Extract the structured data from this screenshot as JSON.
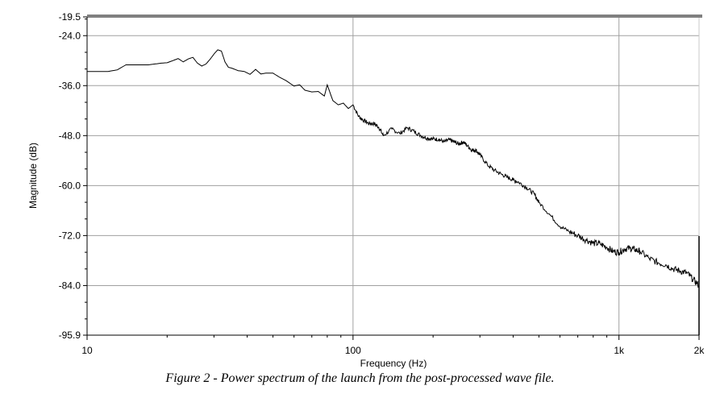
{
  "chart_data": {
    "type": "line",
    "title": "",
    "xlabel": "Frequency (Hz)",
    "ylabel": "Magnitude (dB)",
    "x_scale": "log",
    "xlim": [
      10,
      2000
    ],
    "ylim": [
      -95.9,
      -19.5
    ],
    "x_ticks": [
      {
        "value": 10,
        "label": "10"
      },
      {
        "value": 100,
        "label": "100"
      },
      {
        "value": 1000,
        "label": "1k"
      },
      {
        "value": 2000,
        "label": "2k"
      }
    ],
    "y_ticks": [
      {
        "value": -19.5,
        "label": "-19.5"
      },
      {
        "value": -24.0,
        "label": "-24.0"
      },
      {
        "value": -36.0,
        "label": "-36.0"
      },
      {
        "value": -48.0,
        "label": "-48.0"
      },
      {
        "value": -60.0,
        "label": "-60.0"
      },
      {
        "value": -72.0,
        "label": "-72.0"
      },
      {
        "value": -84.0,
        "label": "-84.0"
      },
      {
        "value": -95.9,
        "label": "-95.9"
      }
    ],
    "grid": true,
    "line_color": "#000000",
    "frame_color": "#808080",
    "series": [
      {
        "x": [
          10,
          11,
          12,
          13,
          14,
          15,
          16,
          17,
          18,
          19,
          20,
          21,
          22,
          23,
          24,
          25,
          26,
          27,
          28,
          29,
          30,
          31,
          32,
          33,
          34,
          35,
          37,
          39,
          41,
          43,
          45,
          47,
          50,
          53,
          56,
          60,
          63,
          66,
          70,
          74,
          78,
          80,
          84,
          88,
          92,
          96,
          100,
          105,
          110,
          115,
          120,
          125,
          130,
          140,
          150,
          160,
          170,
          180,
          190,
          200,
          210,
          220,
          230,
          240,
          250,
          260,
          270,
          280,
          290,
          300,
          320,
          340,
          360,
          380,
          400,
          420,
          450,
          480,
          500,
          550,
          600,
          650,
          700,
          750,
          800,
          850,
          900,
          950,
          1000,
          1050,
          1100,
          1150,
          1200,
          1300,
          1400,
          1500,
          1600,
          1700,
          1800,
          1900,
          2000
        ],
        "y": [
          -32.6,
          -32.6,
          -32.6,
          -32.2,
          -31.0,
          -31.0,
          -31.0,
          -31.0,
          -30.8,
          -30.6,
          -30.5,
          -30.0,
          -29.5,
          -30.3,
          -29.6,
          -29.2,
          -30.6,
          -31.3,
          -30.8,
          -29.7,
          -28.4,
          -27.4,
          -27.7,
          -30.3,
          -31.6,
          -31.8,
          -32.4,
          -32.6,
          -33.3,
          -32.1,
          -33.2,
          -33.0,
          -33.0,
          -34.0,
          -34.8,
          -36.1,
          -35.8,
          -37.1,
          -37.5,
          -37.4,
          -38.5,
          -35.8,
          -39.6,
          -40.6,
          -40.2,
          -41.5,
          -40.6,
          -43.4,
          -44.4,
          -45.1,
          -45.1,
          -46.0,
          -48.0,
          -46.4,
          -47.5,
          -46.1,
          -47.0,
          -48.0,
          -48.6,
          -48.8,
          -48.9,
          -49.5,
          -49.0,
          -49.5,
          -50.0,
          -49.5,
          -50.5,
          -51.5,
          -51.5,
          -52.6,
          -55.0,
          -56.3,
          -57.2,
          -58.0,
          -58.6,
          -59.2,
          -60.5,
          -62.0,
          -64.0,
          -67.0,
          -69.8,
          -71.0,
          -72.0,
          -73.0,
          -73.8,
          -74.0,
          -74.8,
          -75.8,
          -76.0,
          -75.2,
          -75.0,
          -75.4,
          -75.8,
          -77.5,
          -78.5,
          -79.0,
          -80.0,
          -80.5,
          -81.0,
          -82.5,
          -84.0
        ]
      }
    ]
  },
  "caption": "Figure 2 - Power spectrum of the launch from the post-processed wave file."
}
